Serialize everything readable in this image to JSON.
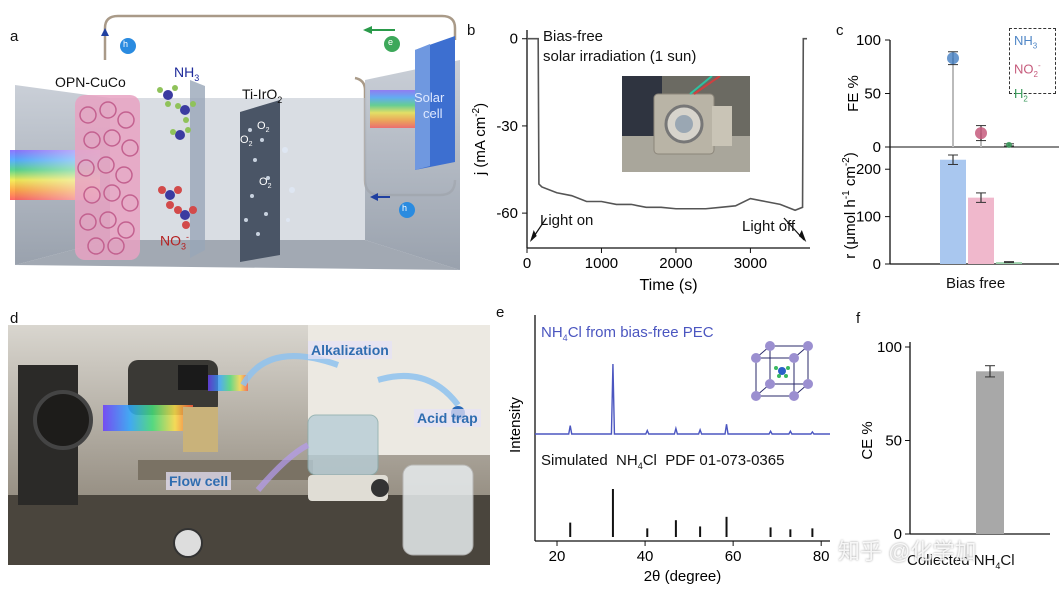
{
  "panel_labels": {
    "a": "a",
    "b": "b",
    "c": "c",
    "d": "d",
    "e": "e",
    "f": "f"
  },
  "panel_a": {
    "catalyst": "OPN-CuCo",
    "anode": "Ti-IrO",
    "anode_sub": "2",
    "nh3": "NH",
    "nh3_sub": "3",
    "no3": "NO",
    "no3_sub": "3",
    "no3_sup": "-",
    "o2": "O",
    "o2_sub": "2",
    "solar_cell": [
      "Solar",
      "cell"
    ],
    "h_plus": "h",
    "e_minus": "e",
    "colors": {
      "cell": "#9aa4b2",
      "foam": "#e7a2c2",
      "anode": "#4a5566",
      "solar": "#3d6fd0",
      "wire": "#a99a88"
    }
  },
  "panel_b": {
    "annotation_1": "Bias-free",
    "annotation_2": "solar irradiation (1 sun)",
    "light_on": "Light on",
    "light_off": "Light off"
  },
  "panel_c": {
    "legend": [
      {
        "text": "NH",
        "sub": "3",
        "sup": "",
        "color": "#4f86c6"
      },
      {
        "text": "NO",
        "sub": "2",
        "sup": "-",
        "color": "#c65b7c"
      },
      {
        "text": "H",
        "sub": "2",
        "sup": "",
        "color": "#3a9a5b"
      }
    ],
    "x_category": "Bias free"
  },
  "panel_d": {
    "alkalization": "Alkalization",
    "acid_trap": "Acid trap",
    "flow_cell": "Flow cell",
    "label_color": "#2f6db0"
  },
  "panel_e": {
    "title_prefix": "NH",
    "title_sub": "4",
    "title_rest": "Cl from bias-free PEC",
    "sim_prefix": "Simulated  NH",
    "sim_sub": "4",
    "sim_rest": "Cl  PDF 01-073-0365",
    "colors": {
      "xrd": "#4b56c0",
      "sim": "#111111"
    }
  },
  "panel_f": {
    "x_prefix": "Collected NH",
    "x_sub": "4",
    "x_rest": "Cl"
  },
  "watermark": "知乎 @化学加",
  "chart_data": [
    {
      "type": "line",
      "panel": "b",
      "xlabel": "Time (s)",
      "ylabel": "j (mA cm",
      "ylabel_sup": "-2",
      "ylabel_close": ")",
      "xlim": [
        0,
        3800
      ],
      "ylim": [
        -72,
        3
      ],
      "xticks": [
        0,
        1000,
        2000,
        3000
      ],
      "yticks": [
        0,
        -30,
        -60
      ],
      "series": [
        {
          "color": "#555555",
          "x": [
            0,
            150,
            160,
            200,
            400,
            600,
            800,
            1000,
            1200,
            1400,
            1600,
            1800,
            2000,
            2200,
            2400,
            2600,
            2800,
            3000,
            3200,
            3400,
            3600,
            3700,
            3710,
            3760
          ],
          "y": [
            0,
            0,
            -50,
            -51,
            -53,
            -54,
            -56,
            -56,
            -57,
            -57,
            -58,
            -58,
            -58.5,
            -58.5,
            -58.5,
            -58,
            -57.5,
            -55,
            -56,
            -57,
            -59,
            -58,
            0,
            0
          ]
        }
      ]
    },
    {
      "type": "bar",
      "panel": "c",
      "top_ylabel": "FE %",
      "top_ylim": [
        0,
        100
      ],
      "top_yticks": [
        0,
        50,
        100
      ],
      "bottom_ylabel": "r (μmol h",
      "bottom_ylabel_sup1": "-1",
      "bottom_ylabel_mid": " cm",
      "bottom_ylabel_sup2": "-2",
      "bottom_ylabel_close": ")",
      "bottom_ylim": [
        0,
        230
      ],
      "bottom_yticks": [
        0,
        100,
        200
      ],
      "categories": [
        "NH3",
        "NO2-",
        "H2"
      ],
      "series": [
        {
          "name": "FE",
          "values": [
            83,
            13,
            2
          ],
          "errors": [
            6,
            7,
            1
          ]
        },
        {
          "name": "r",
          "values": [
            220,
            140,
            4
          ],
          "errors": [
            10,
            10,
            1
          ]
        }
      ]
    },
    {
      "type": "line",
      "panel": "e",
      "xlabel": "2θ (degree)",
      "ylabel": "Intensity",
      "xlim": [
        15,
        82
      ],
      "xticks": [
        20,
        40,
        60,
        80
      ],
      "series": [
        {
          "name": "NH4Cl from bias-free PEC",
          "peaks": [
            [
              23,
              0.12
            ],
            [
              32.7,
              1.0
            ],
            [
              40.5,
              0.05
            ],
            [
              47,
              0.08
            ],
            [
              52.5,
              0.06
            ],
            [
              58.5,
              0.14
            ],
            [
              68.5,
              0.04
            ],
            [
              73,
              0.04
            ],
            [
              78,
              0.03
            ]
          ]
        },
        {
          "name": "Simulated NH4Cl PDF 01-073-0365",
          "peaks": [
            [
              23,
              0.3
            ],
            [
              32.7,
              1.0
            ],
            [
              40.5,
              0.18
            ],
            [
              47,
              0.35
            ],
            [
              52.5,
              0.22
            ],
            [
              58.5,
              0.42
            ],
            [
              68.5,
              0.2
            ],
            [
              73,
              0.16
            ],
            [
              78,
              0.18
            ]
          ]
        }
      ]
    },
    {
      "type": "bar",
      "panel": "f",
      "ylabel": "CE %",
      "ylim": [
        0,
        100
      ],
      "yticks": [
        0,
        50,
        100
      ],
      "ytick_labels": [
        "0",
        "50",
        "100"
      ],
      "categories": [
        "Collected NH4Cl"
      ],
      "values": [
        87
      ],
      "errors": [
        3
      ]
    }
  ]
}
